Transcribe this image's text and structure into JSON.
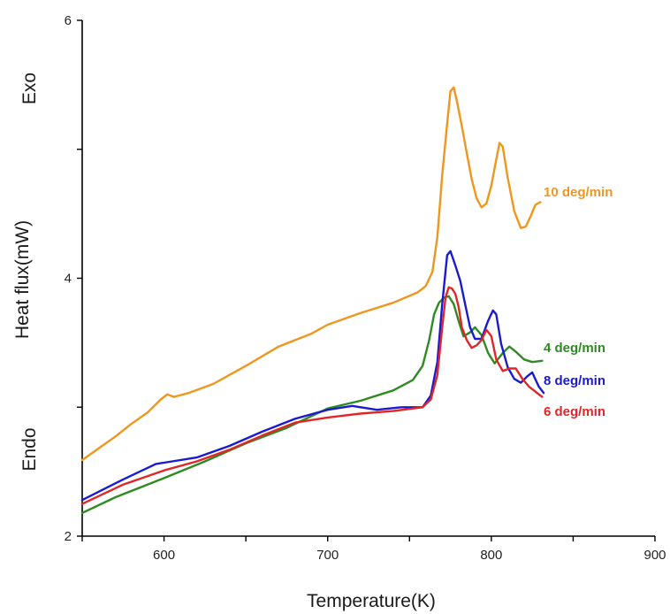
{
  "chart_data": {
    "type": "line",
    "title": "",
    "xlabel": "Temperature(K)",
    "ylabel": "Heat flux(mW)",
    "xlim": [
      550,
      900
    ],
    "ylim": [
      2,
      6
    ],
    "x_ticks": [
      "600",
      "700",
      "800",
      "900"
    ],
    "y_ticks": [
      "2",
      "4",
      "6"
    ],
    "side_labels": {
      "top": "Exo",
      "bottom": "Endo"
    },
    "grid": false,
    "legend": "inline labels at right end of curves",
    "series": [
      {
        "name": "10 deg/min",
        "color": "#f0961e",
        "points": [
          [
            550,
            2.59
          ],
          [
            560,
            2.68
          ],
          [
            570,
            2.77
          ],
          [
            580,
            2.87
          ],
          [
            590,
            2.96
          ],
          [
            598,
            3.06
          ],
          [
            602,
            3.1
          ],
          [
            606,
            3.08
          ],
          [
            615,
            3.11
          ],
          [
            630,
            3.18
          ],
          [
            650,
            3.32
          ],
          [
            670,
            3.47
          ],
          [
            690,
            3.57
          ],
          [
            700,
            3.64
          ],
          [
            720,
            3.73
          ],
          [
            740,
            3.81
          ],
          [
            755,
            3.89
          ],
          [
            760,
            3.94
          ],
          [
            764,
            4.05
          ],
          [
            767,
            4.32
          ],
          [
            770,
            4.8
          ],
          [
            773,
            5.2
          ],
          [
            775,
            5.45
          ],
          [
            777,
            5.48
          ],
          [
            779,
            5.37
          ],
          [
            782,
            5.18
          ],
          [
            785,
            4.97
          ],
          [
            788,
            4.77
          ],
          [
            791,
            4.62
          ],
          [
            794,
            4.55
          ],
          [
            797,
            4.58
          ],
          [
            800,
            4.72
          ],
          [
            803,
            4.92
          ],
          [
            805,
            5.05
          ],
          [
            807,
            5.02
          ],
          [
            810,
            4.78
          ],
          [
            814,
            4.52
          ],
          [
            818,
            4.39
          ],
          [
            821,
            4.4
          ],
          [
            824,
            4.48
          ],
          [
            827,
            4.57
          ],
          [
            830,
            4.59
          ]
        ]
      },
      {
        "name": "4 deg/min",
        "color": "#2e8b22",
        "points": [
          [
            550,
            2.18
          ],
          [
            570,
            2.3
          ],
          [
            600,
            2.45
          ],
          [
            625,
            2.58
          ],
          [
            650,
            2.72
          ],
          [
            675,
            2.84
          ],
          [
            700,
            2.99
          ],
          [
            720,
            3.05
          ],
          [
            740,
            3.13
          ],
          [
            752,
            3.21
          ],
          [
            758,
            3.32
          ],
          [
            762,
            3.52
          ],
          [
            765,
            3.72
          ],
          [
            768,
            3.81
          ],
          [
            771,
            3.85
          ],
          [
            774,
            3.86
          ],
          [
            777,
            3.8
          ],
          [
            780,
            3.67
          ],
          [
            783,
            3.55
          ],
          [
            787,
            3.58
          ],
          [
            790,
            3.62
          ],
          [
            794,
            3.56
          ],
          [
            798,
            3.42
          ],
          [
            802,
            3.34
          ],
          [
            807,
            3.42
          ],
          [
            811,
            3.47
          ],
          [
            815,
            3.43
          ],
          [
            820,
            3.37
          ],
          [
            825,
            3.35
          ],
          [
            831,
            3.36
          ]
        ]
      },
      {
        "name": "8 deg/min",
        "color": "#1a1ad0",
        "points": [
          [
            550,
            2.28
          ],
          [
            575,
            2.44
          ],
          [
            595,
            2.56
          ],
          [
            605,
            2.58
          ],
          [
            620,
            2.61
          ],
          [
            640,
            2.7
          ],
          [
            660,
            2.81
          ],
          [
            680,
            2.91
          ],
          [
            700,
            2.98
          ],
          [
            715,
            3.01
          ],
          [
            730,
            2.98
          ],
          [
            745,
            3.0
          ],
          [
            758,
            3.0
          ],
          [
            763,
            3.09
          ],
          [
            767,
            3.35
          ],
          [
            770,
            3.8
          ],
          [
            773,
            4.18
          ],
          [
            775,
            4.21
          ],
          [
            778,
            4.1
          ],
          [
            781,
            3.98
          ],
          [
            784,
            3.8
          ],
          [
            787,
            3.62
          ],
          [
            790,
            3.53
          ],
          [
            794,
            3.53
          ],
          [
            798,
            3.67
          ],
          [
            801,
            3.75
          ],
          [
            803,
            3.72
          ],
          [
            806,
            3.49
          ],
          [
            810,
            3.31
          ],
          [
            814,
            3.22
          ],
          [
            818,
            3.19
          ],
          [
            822,
            3.24
          ],
          [
            825,
            3.27
          ],
          [
            829,
            3.16
          ],
          [
            832,
            3.11
          ]
        ]
      },
      {
        "name": "6 deg/min",
        "color": "#e02626",
        "points": [
          [
            550,
            2.25
          ],
          [
            575,
            2.4
          ],
          [
            600,
            2.51
          ],
          [
            620,
            2.58
          ],
          [
            640,
            2.67
          ],
          [
            660,
            2.78
          ],
          [
            680,
            2.88
          ],
          [
            700,
            2.92
          ],
          [
            720,
            2.95
          ],
          [
            740,
            2.97
          ],
          [
            758,
            3.0
          ],
          [
            763,
            3.06
          ],
          [
            767,
            3.25
          ],
          [
            770,
            3.62
          ],
          [
            772,
            3.85
          ],
          [
            774,
            3.93
          ],
          [
            776,
            3.92
          ],
          [
            778,
            3.88
          ],
          [
            780,
            3.78
          ],
          [
            782,
            3.62
          ],
          [
            785,
            3.52
          ],
          [
            788,
            3.46
          ],
          [
            791,
            3.48
          ],
          [
            794,
            3.52
          ],
          [
            797,
            3.6
          ],
          [
            800,
            3.55
          ],
          [
            803,
            3.37
          ],
          [
            807,
            3.28
          ],
          [
            811,
            3.3
          ],
          [
            815,
            3.3
          ],
          [
            819,
            3.22
          ],
          [
            823,
            3.16
          ],
          [
            828,
            3.11
          ],
          [
            831,
            3.08
          ]
        ]
      }
    ]
  }
}
